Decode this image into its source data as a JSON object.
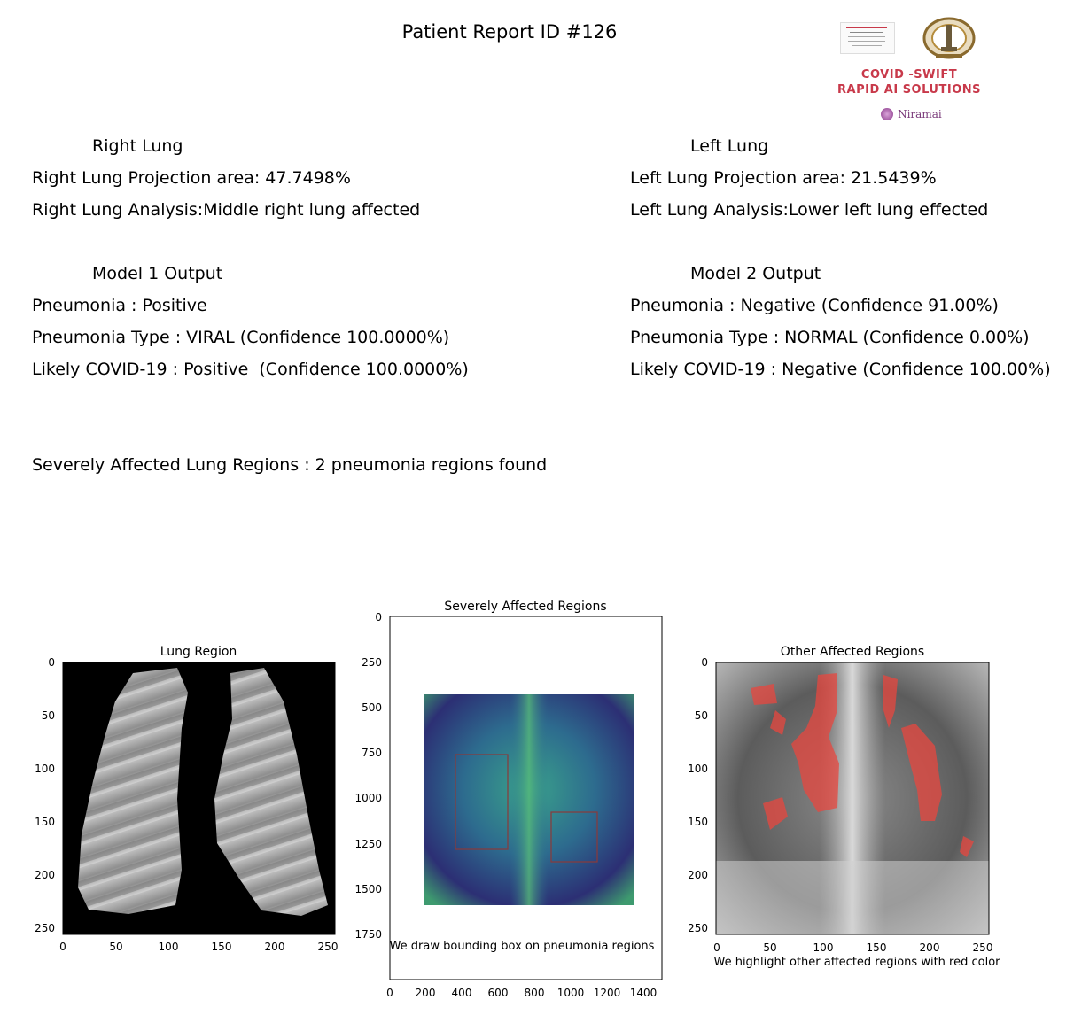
{
  "report": {
    "title": "Patient Report ID #126"
  },
  "branding": {
    "line1": "COVID -SWIFT",
    "line2": "RAPID AI SOLUTIONS",
    "partner": "Niramai"
  },
  "right_lung": {
    "heading": "Right Lung",
    "projection": "Right Lung Projection area: 47.7498%",
    "analysis": "Right Lung Analysis:Middle right lung affected"
  },
  "left_lung": {
    "heading": "Left Lung",
    "projection": "Left Lung Projection area: 21.5439%",
    "analysis": "Left Lung Analysis:Lower left lung effected"
  },
  "model1": {
    "heading": "Model 1 Output",
    "pneumonia": "Pneumonia : Positive",
    "type": "Pneumonia Type : VIRAL (Confidence 100.0000%)",
    "covid": "Likely COVID-19 : Positive  (Confidence 100.0000%)"
  },
  "model2": {
    "heading": "Model 2 Output",
    "pneumonia": "Pneumonia : Negative (Confidence 91.00%)",
    "type": "Pneumonia Type : NORMAL (Confidence 0.00%)",
    "covid": "Likely COVID-19 : Negative (Confidence 100.00%)"
  },
  "severe_summary": "Severely Affected Lung Regions : 2 pneumonia regions found",
  "panels": {
    "lung_region": {
      "title": "Lung Region",
      "xticks": [
        "0",
        "50",
        "100",
        "150",
        "200",
        "250"
      ],
      "yticks": [
        "0",
        "50",
        "100",
        "150",
        "200",
        "250"
      ]
    },
    "severe": {
      "title": "Severely Affected Regions",
      "caption": "We draw bounding box on pneumonia regions",
      "xticks": [
        "0",
        "200",
        "400",
        "600",
        "800",
        "1000",
        "1200",
        "1400"
      ],
      "yticks": [
        "0",
        "250",
        "500",
        "750",
        "1000",
        "1250",
        "1500",
        "1750"
      ]
    },
    "other": {
      "title": "Other Affected Regions",
      "caption": "We highlight other affected regions with red color",
      "xticks": [
        "0",
        "50",
        "100",
        "150",
        "200",
        "250"
      ],
      "yticks": [
        "0",
        "50",
        "100",
        "150",
        "200",
        "250"
      ]
    }
  }
}
